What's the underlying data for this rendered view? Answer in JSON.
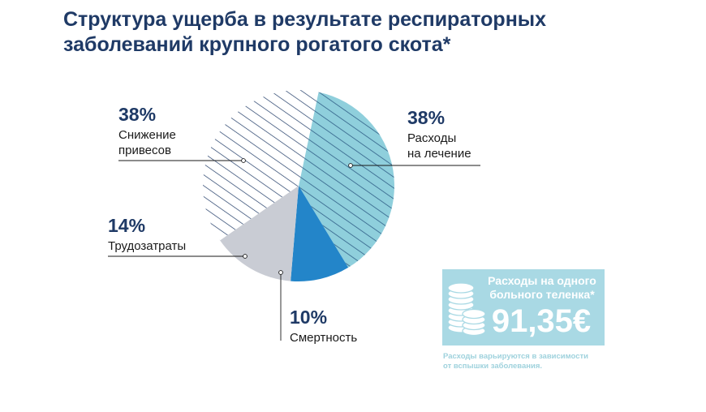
{
  "header": {
    "title_line1": "Структура ущерба в результате респираторных",
    "title_line2": "заболеваний крупного рогатого скота*"
  },
  "chart_data": {
    "type": "pie",
    "title": "Структура ущерба в результате респираторных заболеваний крупного рогатого скота*",
    "slices": [
      {
        "label": "Расходы на лечение",
        "value": 38,
        "value_label": "38%",
        "color": "#8fcfdc",
        "hatched": true
      },
      {
        "label": "Смертность",
        "value": 10,
        "value_label": "10%",
        "color": "#2385c9",
        "hatched": false
      },
      {
        "label": "Трудозатраты",
        "value": 14,
        "value_label": "14%",
        "color": "#c9ccd4",
        "hatched": false
      },
      {
        "label": "Снижение привесов",
        "value": 38,
        "value_label": "38%",
        "color": "#ffffff",
        "hatched": true
      }
    ]
  },
  "labels": {
    "weight_loss_pct": "38%",
    "weight_loss_l1": "Снижение",
    "weight_loss_l2": "привесов",
    "labor_pct": "14%",
    "labor_l1": "Трудозатраты",
    "mortality_pct": "10%",
    "mortality_l1": "Смертность",
    "treatment_pct": "38%",
    "treatment_l1": "Расходы",
    "treatment_l2": "на лечение"
  },
  "info_box": {
    "title_line1": "Расходы на одного",
    "title_line2": "больного теленка*",
    "value": "91,35€",
    "note_line1": "Расходы варьируются в зависимости",
    "note_line2": "от вспышки заболевания.",
    "icon": "coins-icon",
    "bg_color": "#a9d9e4"
  }
}
